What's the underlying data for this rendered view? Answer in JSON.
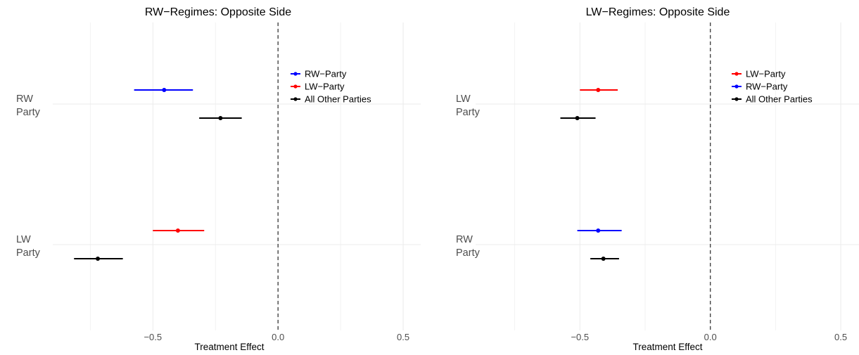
{
  "colors": {
    "rw": "#0000ff",
    "lw": "#ff0000",
    "other": "#000000",
    "grid": "#ebebeb",
    "zero_line": "#444444"
  },
  "chart_data": [
    {
      "type": "scatter",
      "title": "RW−Regimes: Opposite Side",
      "xlabel": "Treatment Effect",
      "xlim": [
        -0.9,
        0.57
      ],
      "x_ticks": [
        -0.5,
        0.0,
        0.5
      ],
      "x_tick_labels": [
        "−0.5",
        "0.0",
        "0.5"
      ],
      "categories": [
        [
          "RW",
          "Party"
        ],
        [
          "LW",
          "Party"
        ]
      ],
      "vline": 0,
      "legend_position": "top-right",
      "legend": [
        {
          "label": "RW−Party",
          "color": "#0000ff"
        },
        {
          "label": "LW−Party",
          "color": "#ff0000"
        },
        {
          "label": "All Other Parties",
          "color": "#000000"
        }
      ],
      "series": [
        {
          "name": "RW−Party",
          "color": "#0000ff",
          "points": [
            {
              "category": 0,
              "slot": "upper",
              "estimate": -0.455,
              "ci": [
                -0.575,
                -0.34
              ]
            }
          ]
        },
        {
          "name": "LW−Party",
          "color": "#ff0000",
          "points": [
            {
              "category": 1,
              "slot": "upper",
              "estimate": -0.4,
              "ci": [
                -0.5,
                -0.295
              ]
            }
          ]
        },
        {
          "name": "All Other Parties",
          "color": "#000000",
          "points": [
            {
              "category": 0,
              "slot": "lower",
              "estimate": -0.23,
              "ci": [
                -0.315,
                -0.145
              ]
            },
            {
              "category": 1,
              "slot": "lower",
              "estimate": -0.72,
              "ci": [
                -0.815,
                -0.62
              ]
            }
          ]
        }
      ]
    },
    {
      "type": "scatter",
      "title": "LW−Regimes: Opposite Side",
      "xlabel": "Treatment Effect",
      "xlim": [
        -0.9,
        0.57
      ],
      "x_ticks": [
        -0.5,
        0.0,
        0.5
      ],
      "x_tick_labels": [
        "−0.5",
        "0.0",
        "0.5"
      ],
      "categories": [
        [
          "LW",
          "Party"
        ],
        [
          "RW",
          "Party"
        ]
      ],
      "vline": 0,
      "legend_position": "top-right",
      "legend": [
        {
          "label": "LW−Party",
          "color": "#ff0000"
        },
        {
          "label": "RW−Party",
          "color": "#0000ff"
        },
        {
          "label": "All Other Parties",
          "color": "#000000"
        }
      ],
      "series": [
        {
          "name": "LW−Party",
          "color": "#ff0000",
          "points": [
            {
              "category": 0,
              "slot": "upper",
              "estimate": -0.43,
              "ci": [
                -0.5,
                -0.355
              ]
            }
          ]
        },
        {
          "name": "RW−Party",
          "color": "#0000ff",
          "points": [
            {
              "category": 1,
              "slot": "upper",
              "estimate": -0.43,
              "ci": [
                -0.51,
                -0.34
              ]
            }
          ]
        },
        {
          "name": "All Other Parties",
          "color": "#000000",
          "points": [
            {
              "category": 0,
              "slot": "lower",
              "estimate": -0.51,
              "ci": [
                -0.575,
                -0.44
              ]
            },
            {
              "category": 1,
              "slot": "lower",
              "estimate": -0.41,
              "ci": [
                -0.46,
                -0.35
              ]
            }
          ]
        }
      ]
    }
  ]
}
